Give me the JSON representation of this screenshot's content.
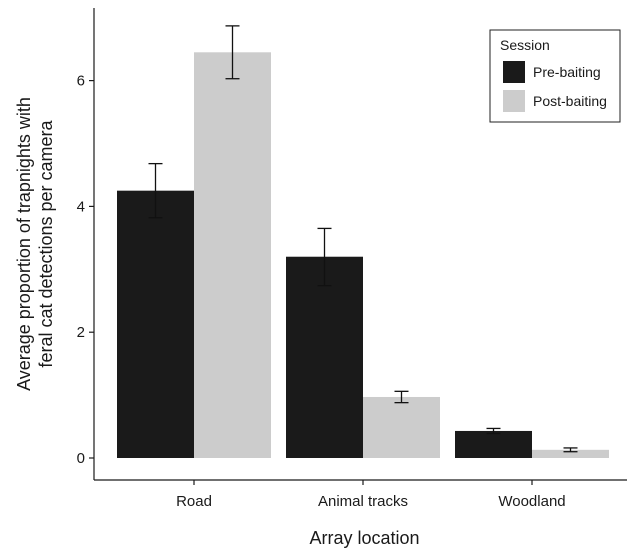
{
  "chart_data": {
    "type": "bar",
    "title": "",
    "xlabel": "Array location",
    "ylabel_lines": [
      "Average proportion of trapnights with",
      "feral cat detections per camera"
    ],
    "categories": [
      "Road",
      "Animal tracks",
      "Woodland"
    ],
    "ylim": [
      0,
      7.2
    ],
    "yticks": [
      0,
      2,
      4,
      6
    ],
    "grid": false,
    "legend": {
      "title": "Session",
      "position": "top-right"
    },
    "series": [
      {
        "name": "Pre-baiting",
        "color": "#1a1a1a",
        "values": [
          4.25,
          3.2,
          0.43
        ],
        "error_low": [
          3.82,
          2.74,
          0.39
        ],
        "error_high": [
          4.68,
          3.65,
          0.47
        ]
      },
      {
        "name": "Post-baiting",
        "color": "#cccccc",
        "values": [
          6.45,
          0.97,
          0.13
        ],
        "error_low": [
          6.03,
          0.88,
          0.1
        ],
        "error_high": [
          6.87,
          1.06,
          0.16
        ]
      }
    ]
  }
}
